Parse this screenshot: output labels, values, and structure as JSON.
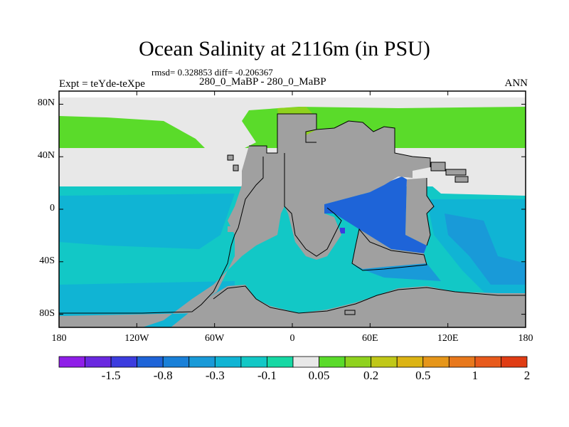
{
  "title": "Ocean Salinity at 2116m (in PSU)",
  "stats_line": "rmsd= 0.328853 diff= -0.206367",
  "subtitle": "280_0_MaBP - 280_0_MaBP",
  "left_label": "Expt = teYde-teXpe",
  "right_label": "ANN",
  "map": {
    "projection": "cylindrical-equidistant",
    "lon_range": [
      -180,
      180
    ],
    "lat_range": [
      -90,
      90
    ],
    "land_color": "#a0a0a0",
    "coastline_color": "#000000",
    "lat_ticks": [
      {
        "value": 80,
        "label": "80N"
      },
      {
        "value": 40,
        "label": "40N"
      },
      {
        "value": 0,
        "label": "0"
      },
      {
        "value": -40,
        "label": "40S"
      },
      {
        "value": -80,
        "label": "80S"
      }
    ],
    "lon_ticks": [
      {
        "value": -180,
        "label": "180"
      },
      {
        "value": -120,
        "label": "120W"
      },
      {
        "value": -60,
        "label": "60W"
      },
      {
        "value": 0,
        "label": "0"
      },
      {
        "value": 60,
        "label": "60E"
      },
      {
        "value": 120,
        "label": "120E"
      },
      {
        "value": 180,
        "label": "180"
      }
    ]
  },
  "colorbar": {
    "colors": [
      "#8f1ee8",
      "#6a28e0",
      "#3c3cdf",
      "#1e64d8",
      "#1980d8",
      "#199ad8",
      "#10b4d4",
      "#12c8c6",
      "#16d8a4",
      "#e8e8e8",
      "#5adb2a",
      "#8fd21e",
      "#c0c818",
      "#dcb414",
      "#e6961a",
      "#e8781c",
      "#e85a1c",
      "#e03c14"
    ],
    "labels": [
      {
        "after_box": 1,
        "text": "-1.5"
      },
      {
        "after_box": 3,
        "text": "-0.8"
      },
      {
        "after_box": 5,
        "text": "-0.3"
      },
      {
        "after_box": 7,
        "text": "-0.1"
      },
      {
        "after_box": 9,
        "text": "0.05"
      },
      {
        "after_box": 11,
        "text": "0.2"
      },
      {
        "after_box": 13,
        "text": "0.5"
      },
      {
        "after_box": 15,
        "text": "1"
      },
      {
        "after_box": 17,
        "text": "2"
      }
    ]
  }
}
